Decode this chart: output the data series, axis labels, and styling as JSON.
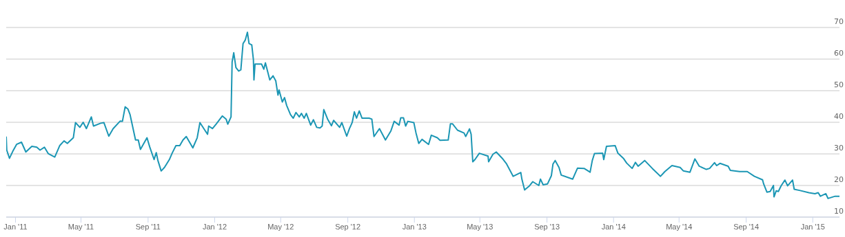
{
  "chart_data": {
    "type": "line",
    "grid": "y",
    "xlim": [
      "2010-12-15",
      "2015-02-19"
    ],
    "xticks": [
      {
        "value": "2011-01-01",
        "label": "Jan '11"
      },
      {
        "value": "2011-05-01",
        "label": "May '11"
      },
      {
        "value": "2011-09-01",
        "label": "Sep '11"
      },
      {
        "value": "2012-01-01",
        "label": "Jan '12"
      },
      {
        "value": "2012-05-01",
        "label": "May '12"
      },
      {
        "value": "2012-09-01",
        "label": "Sep '12"
      },
      {
        "value": "2013-01-01",
        "label": "Jan '13"
      },
      {
        "value": "2013-05-01",
        "label": "May '13"
      },
      {
        "value": "2013-09-01",
        "label": "Sep '13"
      },
      {
        "value": "2014-01-01",
        "label": "Jan '14"
      },
      {
        "value": "2014-05-01",
        "label": "May '14"
      },
      {
        "value": "2014-09-01",
        "label": "Sep '14"
      },
      {
        "value": "2015-01-01",
        "label": "Jan '15"
      }
    ],
    "ylim": [
      10,
      70
    ],
    "yticks": [
      10,
      20,
      30,
      40,
      50,
      60,
      70
    ],
    "x": [
      "2010-12-15",
      "2010-12-16",
      "2010-12-21",
      "2010-12-27",
      "2011-01-03",
      "2011-01-12",
      "2011-01-20",
      "2011-01-31",
      "2011-02-09",
      "2011-02-15",
      "2011-02-23",
      "2011-03-02",
      "2011-03-14",
      "2011-03-23",
      "2011-03-31",
      "2011-04-06",
      "2011-04-17",
      "2011-04-21",
      "2011-04-29",
      "2011-05-05",
      "2011-05-11",
      "2011-05-20",
      "2011-05-24",
      "2011-06-06",
      "2011-06-12",
      "2011-06-21",
      "2011-06-29",
      "2011-07-12",
      "2011-07-16",
      "2011-07-21",
      "2011-07-26",
      "2011-07-30",
      "2011-08-09",
      "2011-08-14",
      "2011-08-18",
      "2011-08-30",
      "2011-09-04",
      "2011-09-12",
      "2011-09-16",
      "2011-09-19",
      "2011-09-25",
      "2011-10-01",
      "2011-10-10",
      "2011-10-15",
      "2011-10-22",
      "2011-10-29",
      "2011-11-04",
      "2011-11-10",
      "2011-11-22",
      "2011-11-30",
      "2011-12-05",
      "2011-12-14",
      "2011-12-19",
      "2011-12-21",
      "2011-12-28",
      "2012-01-04",
      "2012-01-15",
      "2012-01-22",
      "2012-01-25",
      "2012-01-31",
      "2012-02-02",
      "2012-02-05",
      "2012-02-09",
      "2012-02-14",
      "2012-02-18",
      "2012-02-22",
      "2012-02-26",
      "2012-03-01",
      "2012-03-04",
      "2012-03-09",
      "2012-03-12",
      "2012-03-13",
      "2012-03-15",
      "2012-03-27",
      "2012-03-31",
      "2012-04-03",
      "2012-04-11",
      "2012-04-17",
      "2012-04-22",
      "2012-04-26",
      "2012-04-28",
      "2012-05-04",
      "2012-05-08",
      "2012-05-12",
      "2012-05-19",
      "2012-05-24",
      "2012-05-29",
      "2012-06-04",
      "2012-06-08",
      "2012-06-13",
      "2012-06-17",
      "2012-06-25",
      "2012-06-30",
      "2012-07-06",
      "2012-07-12",
      "2012-07-16",
      "2012-07-19",
      "2012-07-26",
      "2012-08-02",
      "2012-08-06",
      "2012-08-17",
      "2012-08-21",
      "2012-08-30",
      "2012-09-04",
      "2012-09-09",
      "2012-09-13",
      "2012-09-17",
      "2012-09-22",
      "2012-09-27",
      "2012-10-10",
      "2012-10-15",
      "2012-10-19",
      "2012-10-29",
      "2012-11-09",
      "2012-11-19",
      "2012-11-25",
      "2012-12-04",
      "2012-12-07",
      "2012-12-12",
      "2012-12-16",
      "2012-12-20",
      "2012-12-31",
      "2013-01-04",
      "2013-01-09",
      "2013-01-15",
      "2013-01-27",
      "2013-02-01",
      "2013-02-12",
      "2013-02-17",
      "2013-03-04",
      "2013-03-08",
      "2013-03-12",
      "2013-03-21",
      "2013-04-02",
      "2013-04-05",
      "2013-04-12",
      "2013-04-15",
      "2013-04-18",
      "2013-04-22",
      "2013-04-30",
      "2013-05-16",
      "2013-05-17",
      "2013-05-25",
      "2013-05-31",
      "2013-06-11",
      "2013-06-19",
      "2013-07-01",
      "2013-07-15",
      "2013-07-17",
      "2013-07-22",
      "2013-07-31",
      "2013-08-06",
      "2013-08-17",
      "2013-08-20",
      "2013-08-25",
      "2013-09-02",
      "2013-09-09",
      "2013-09-12",
      "2013-09-16",
      "2013-09-23",
      "2013-09-27",
      "2013-10-18",
      "2013-10-27",
      "2013-11-08",
      "2013-11-19",
      "2013-11-23",
      "2013-11-27",
      "2013-12-12",
      "2013-12-14",
      "2013-12-19",
      "2014-01-04",
      "2014-01-09",
      "2014-01-19",
      "2014-01-25",
      "2014-02-04",
      "2014-02-10",
      "2014-02-15",
      "2014-02-27",
      "2014-03-13",
      "2014-03-28",
      "2014-04-05",
      "2014-04-18",
      "2014-05-03",
      "2014-05-09",
      "2014-05-21",
      "2014-05-30",
      "2014-06-07",
      "2014-06-20",
      "2014-06-26",
      "2014-07-05",
      "2014-07-09",
      "2014-07-15",
      "2014-07-30",
      "2014-08-03",
      "2014-08-20",
      "2014-09-03",
      "2014-09-16",
      "2014-10-01",
      "2014-10-03",
      "2014-10-09",
      "2014-10-15",
      "2014-10-21",
      "2014-10-22",
      "2014-10-26",
      "2014-10-30",
      "2014-11-04",
      "2014-11-11",
      "2014-11-16",
      "2014-11-25",
      "2014-11-28",
      "2014-12-09",
      "2014-12-25",
      "2015-01-05",
      "2015-01-11",
      "2015-01-15",
      "2015-01-25",
      "2015-01-29",
      "2015-02-11",
      "2015-02-19"
    ],
    "series": [
      {
        "color": "#1b96b4",
        "values": [
          35.5,
          31.2,
          28.6,
          30.8,
          33.0,
          33.7,
          30.6,
          32.4,
          32.1,
          31.2,
          32.1,
          30.1,
          29.0,
          32.6,
          34.1,
          33.3,
          35.1,
          39.9,
          38.4,
          40.0,
          38.0,
          41.7,
          38.8,
          39.7,
          39.9,
          35.6,
          38.0,
          40.4,
          40.3,
          44.9,
          44.2,
          42.4,
          34.4,
          34.4,
          31.4,
          35.1,
          32.2,
          28.2,
          30.4,
          27.9,
          24.6,
          25.7,
          28.2,
          30.2,
          32.6,
          32.6,
          34.4,
          35.5,
          31.9,
          35.1,
          39.9,
          37.5,
          36.2,
          38.8,
          38.0,
          39.5,
          42.0,
          41.0,
          39.4,
          41.7,
          59.1,
          62.0,
          57.3,
          56.2,
          56.6,
          64.9,
          66.0,
          68.5,
          64.9,
          64.5,
          59.8,
          53.4,
          58.4,
          58.4,
          56.8,
          58.8,
          53.4,
          54.7,
          53.1,
          48.6,
          50.2,
          46.4,
          47.8,
          45.3,
          42.4,
          41.3,
          43.1,
          41.7,
          42.8,
          41.3,
          42.8,
          39.1,
          40.8,
          38.4,
          38.2,
          38.8,
          44.0,
          41.0,
          38.9,
          40.6,
          38.4,
          39.9,
          35.6,
          38.0,
          39.9,
          43.3,
          41.3,
          43.6,
          41.3,
          41.3,
          41.0,
          35.5,
          38.0,
          34.4,
          37.3,
          40.3,
          39.1,
          41.4,
          41.4,
          38.8,
          40.3,
          39.9,
          36.6,
          33.3,
          34.6,
          33.0,
          35.9,
          35.1,
          34.3,
          34.4,
          39.5,
          39.5,
          37.5,
          36.6,
          35.5,
          37.9,
          36.2,
          27.5,
          28.2,
          30.2,
          29.3,
          27.5,
          29.9,
          30.6,
          28.6,
          26.8,
          22.9,
          24.1,
          22.0,
          18.6,
          19.9,
          21.2,
          20.0,
          22.0,
          20.2,
          20.5,
          23.1,
          26.8,
          27.9,
          25.7,
          23.3,
          22.0,
          25.5,
          25.4,
          24.2,
          27.9,
          30.1,
          30.2,
          28.2,
          32.4,
          32.6,
          30.2,
          28.6,
          27.1,
          25.4,
          27.3,
          26.1,
          27.9,
          25.4,
          22.9,
          24.4,
          26.3,
          25.7,
          24.6,
          24.2,
          28.4,
          26.1,
          25.1,
          25.4,
          27.2,
          26.3,
          27.0,
          26.1,
          24.8,
          24.4,
          24.4,
          22.9,
          21.8,
          20.5,
          17.9,
          18.1,
          20.0,
          16.4,
          18.3,
          18.1,
          19.9,
          21.7,
          19.9,
          21.7,
          18.8,
          18.4,
          17.7,
          17.4,
          17.7,
          16.6,
          17.4,
          15.9,
          16.6,
          16.6
        ]
      }
    ]
  }
}
